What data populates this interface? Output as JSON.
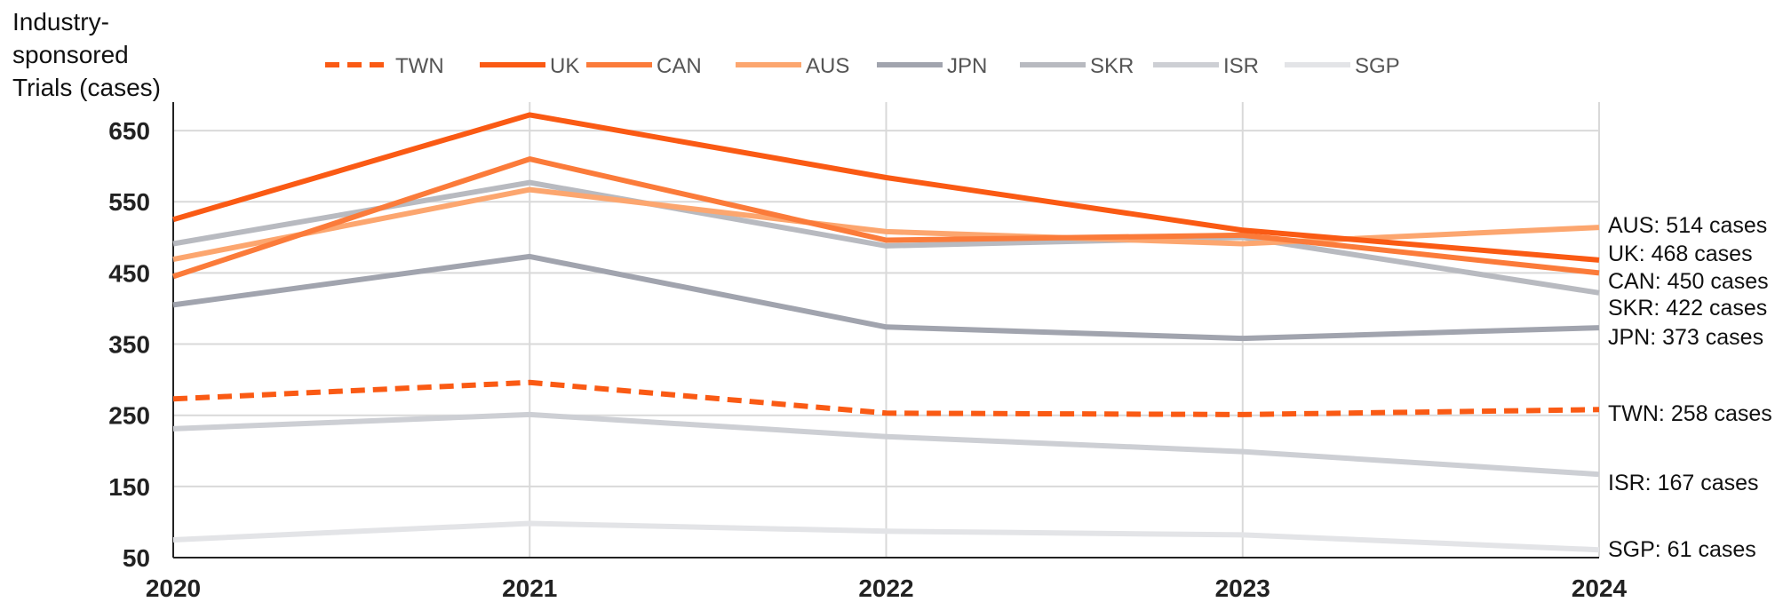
{
  "chart_data": {
    "type": "line",
    "title": "",
    "ylabel_lines": [
      "Industry-",
      "sponsored",
      "Trials (cases)"
    ],
    "xlabel": "",
    "x": [
      "2020",
      "2021",
      "2022",
      "2023",
      "2024"
    ],
    "y_ticks": [
      50,
      150,
      250,
      350,
      450,
      550,
      650
    ],
    "ylim": [
      50,
      690
    ],
    "grid": true,
    "legend_position": "top",
    "series": [
      {
        "name": "TWN",
        "color": "#fa5a14",
        "dashed": true,
        "values": [
          273,
          296,
          253,
          251,
          258
        ],
        "end_label": "TWN: 258 cases"
      },
      {
        "name": "UK",
        "color": "#fa5a14",
        "dashed": false,
        "values": [
          525,
          672,
          584,
          510,
          468
        ],
        "end_label": "UK: 468 cases"
      },
      {
        "name": "CAN",
        "color": "#fb7b3a",
        "dashed": false,
        "values": [
          445,
          610,
          496,
          503,
          450
        ],
        "end_label": "CAN: 450 cases"
      },
      {
        "name": "AUS",
        "color": "#fca66f",
        "dashed": false,
        "values": [
          469,
          567,
          508,
          491,
          514
        ],
        "end_label": "AUS: 514 cases"
      },
      {
        "name": "JPN",
        "color": "#a1a4ae",
        "dashed": false,
        "values": [
          405,
          473,
          374,
          358,
          373
        ],
        "end_label": "JPN: 373 cases"
      },
      {
        "name": "SKR",
        "color": "#b8bac0",
        "dashed": false,
        "values": [
          491,
          577,
          488,
          500,
          422
        ],
        "end_label": "SKR: 422 cases"
      },
      {
        "name": "ISR",
        "color": "#cdcfd4",
        "dashed": false,
        "values": [
          231,
          251,
          220,
          199,
          167
        ],
        "end_label": "ISR: 167 cases"
      },
      {
        "name": "SGP",
        "color": "#e3e4e7",
        "dashed": false,
        "values": [
          75,
          98,
          87,
          82,
          61
        ],
        "end_label": "SGP: 61 cases"
      }
    ]
  }
}
